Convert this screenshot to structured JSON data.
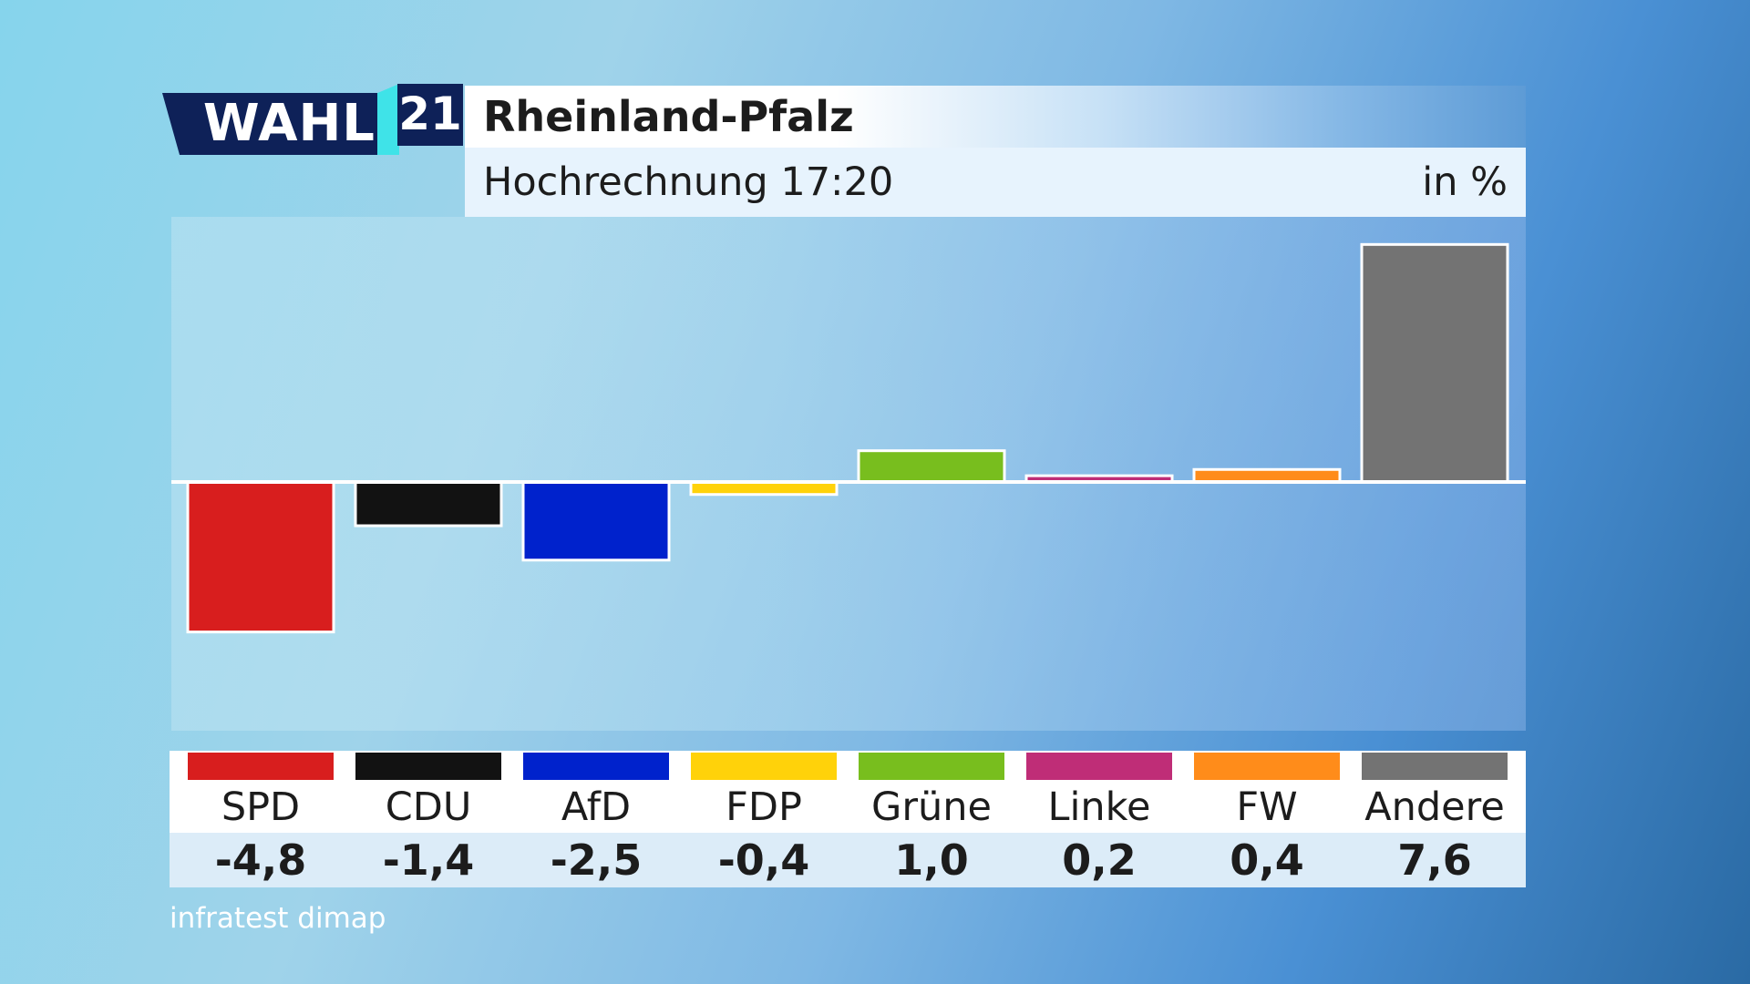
{
  "header": {
    "logo_text": "WAHL",
    "logo_number": "21",
    "title": "Rheinland-Pfalz",
    "subtitle": "Hochrechnung 17:20",
    "unit": "in %"
  },
  "source": "infratest dimap",
  "colors": {
    "SPD": "#d81e1e",
    "CDU": "#121212",
    "AfD": "#0022cc",
    "FDP": "#ffd20a",
    "Grüne": "#78be1e",
    "Linke": "#bf2d77",
    "FW": "#ff8c1a",
    "Andere": "#737373"
  },
  "chart_data": {
    "type": "bar",
    "title": "Rheinland-Pfalz",
    "subtitle": "Hochrechnung 17:20",
    "unit": "in %",
    "categories": [
      "SPD",
      "CDU",
      "AfD",
      "FDP",
      "Grüne",
      "Linke",
      "FW",
      "Andere"
    ],
    "values": [
      -4.8,
      -1.4,
      -2.5,
      -0.4,
      1.0,
      0.2,
      0.4,
      7.6
    ],
    "value_labels": [
      "-4,8",
      "-1,4",
      "-2,5",
      "-0,4",
      "1,0",
      "0,2",
      "0,4",
      "7,6"
    ],
    "ylim": [
      -7.8,
      7.8
    ],
    "grid": false,
    "legend": "bottom"
  }
}
